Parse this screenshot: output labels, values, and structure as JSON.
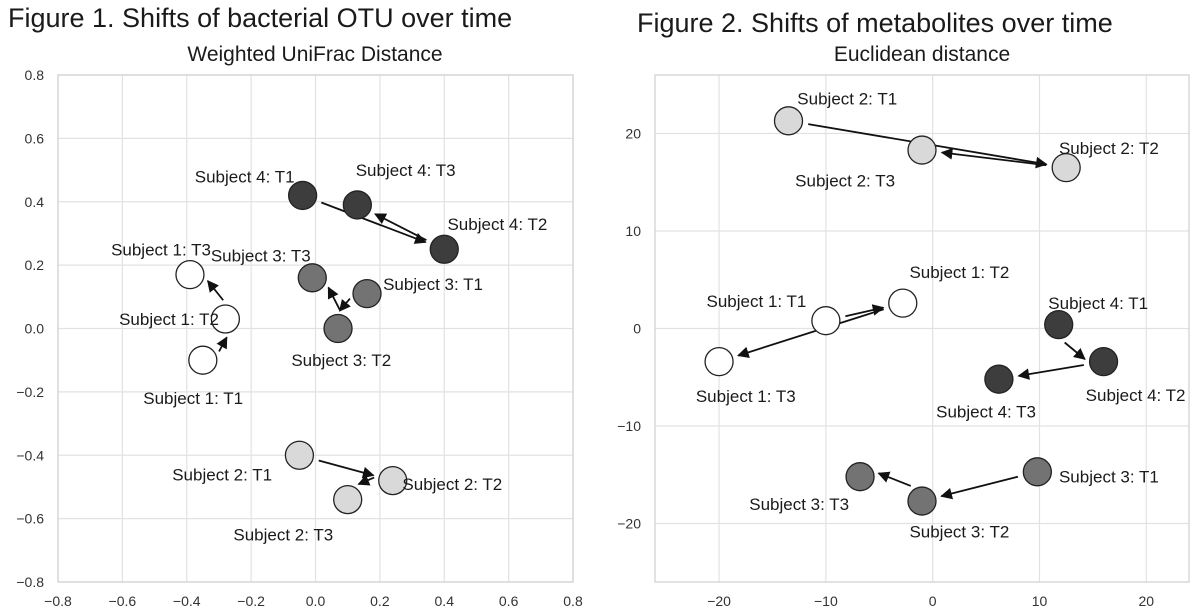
{
  "colors": {
    "Subject 1": "#ffffff",
    "Subject 2": "#d9d9d9",
    "Subject 3": "#737373",
    "Subject 4": "#3d3d3d",
    "grid": "#e2e2e2",
    "axis": "#cfcfcf",
    "arrow": "#111111",
    "marker_edge": "#222222"
  },
  "chart_data": [
    {
      "type": "scatter",
      "title": "Figure 1. Shifts of bacterial OTU over time",
      "subtitle": "Weighted UniFrac Distance",
      "xlabel": "",
      "ylabel": "",
      "xlim": [
        -0.8,
        0.8
      ],
      "ylim": [
        -0.8,
        0.8
      ],
      "xticks": [
        "-0.8",
        "-0.6",
        "-0.4",
        "-0.2",
        "0.0",
        "0.2",
        "0.4",
        "0.6",
        "0.8"
      ],
      "yticks": [
        "0.8",
        "0.6",
        "0.4",
        "0.2",
        "0.0",
        "-0.2",
        "-0.4",
        "-0.6",
        "-0.8"
      ],
      "grid": true,
      "points": [
        {
          "subject": "Subject 1",
          "time": "T1",
          "x": -0.35,
          "y": -0.1,
          "label": "Subject 1: T1"
        },
        {
          "subject": "Subject 1",
          "time": "T2",
          "x": -0.28,
          "y": 0.03,
          "label": "Subject 1: T2"
        },
        {
          "subject": "Subject 1",
          "time": "T3",
          "x": -0.39,
          "y": 0.17,
          "label": "Subject 1: T3"
        },
        {
          "subject": "Subject 2",
          "time": "T1",
          "x": -0.05,
          "y": -0.4,
          "label": "Subject 2: T1"
        },
        {
          "subject": "Subject 2",
          "time": "T2",
          "x": 0.24,
          "y": -0.48,
          "label": "Subject 2: T2"
        },
        {
          "subject": "Subject 2",
          "time": "T3",
          "x": 0.1,
          "y": -0.54,
          "label": "Subject 2: T3"
        },
        {
          "subject": "Subject 3",
          "time": "T1",
          "x": 0.16,
          "y": 0.11,
          "label": "Subject 3: T1"
        },
        {
          "subject": "Subject 3",
          "time": "T2",
          "x": 0.07,
          "y": 0.0,
          "label": "Subject 3: T2"
        },
        {
          "subject": "Subject 3",
          "time": "T3",
          "x": -0.01,
          "y": 0.16,
          "label": "Subject 3: T3"
        },
        {
          "subject": "Subject 4",
          "time": "T1",
          "x": -0.04,
          "y": 0.42,
          "label": "Subject 4: T1"
        },
        {
          "subject": "Subject 4",
          "time": "T2",
          "x": 0.4,
          "y": 0.25,
          "label": "Subject 4: T2"
        },
        {
          "subject": "Subject 4",
          "time": "T3",
          "x": 0.13,
          "y": 0.39,
          "label": "Subject 4: T3"
        }
      ]
    },
    {
      "type": "scatter",
      "title": "Figure 2. Shifts of metabolites over time",
      "subtitle": "Euclidean distance",
      "xlabel": "",
      "ylabel": "",
      "xlim": [
        -26,
        24
      ],
      "ylim": [
        -26,
        26
      ],
      "xticks": [
        "-20",
        "-10",
        "0",
        "10",
        "20"
      ],
      "yticks": [
        "20",
        "10",
        "0",
        "-10",
        "-20"
      ],
      "grid": true,
      "points": [
        {
          "subject": "Subject 1",
          "time": "T1",
          "x": -10.0,
          "y": 0.8,
          "label": "Subject 1: T1"
        },
        {
          "subject": "Subject 1",
          "time": "T2",
          "x": -2.8,
          "y": 2.6,
          "label": "Subject 1: T2"
        },
        {
          "subject": "Subject 1",
          "time": "T3",
          "x": -20.0,
          "y": -3.4,
          "label": "Subject 1: T3"
        },
        {
          "subject": "Subject 2",
          "time": "T1",
          "x": -13.5,
          "y": 21.3,
          "label": "Subject 2: T1"
        },
        {
          "subject": "Subject 2",
          "time": "T2",
          "x": 12.5,
          "y": 16.5,
          "label": "Subject 2: T2"
        },
        {
          "subject": "Subject 2",
          "time": "T3",
          "x": -1.0,
          "y": 18.3,
          "label": "Subject 2: T3"
        },
        {
          "subject": "Subject 3",
          "time": "T1",
          "x": 9.8,
          "y": -14.7,
          "label": "Subject 3: T1"
        },
        {
          "subject": "Subject 3",
          "time": "T2",
          "x": -1.0,
          "y": -17.7,
          "label": "Subject 3: T2"
        },
        {
          "subject": "Subject 3",
          "time": "T3",
          "x": -6.8,
          "y": -15.2,
          "label": "Subject 3: T3"
        },
        {
          "subject": "Subject 4",
          "time": "T1",
          "x": 11.8,
          "y": 0.4,
          "label": "Subject 4: T1"
        },
        {
          "subject": "Subject 4",
          "time": "T2",
          "x": 16.0,
          "y": -3.4,
          "label": "Subject 4: T2"
        },
        {
          "subject": "Subject 4",
          "time": "T3",
          "x": 6.2,
          "y": -5.2,
          "label": "Subject 4: T3"
        }
      ]
    }
  ]
}
